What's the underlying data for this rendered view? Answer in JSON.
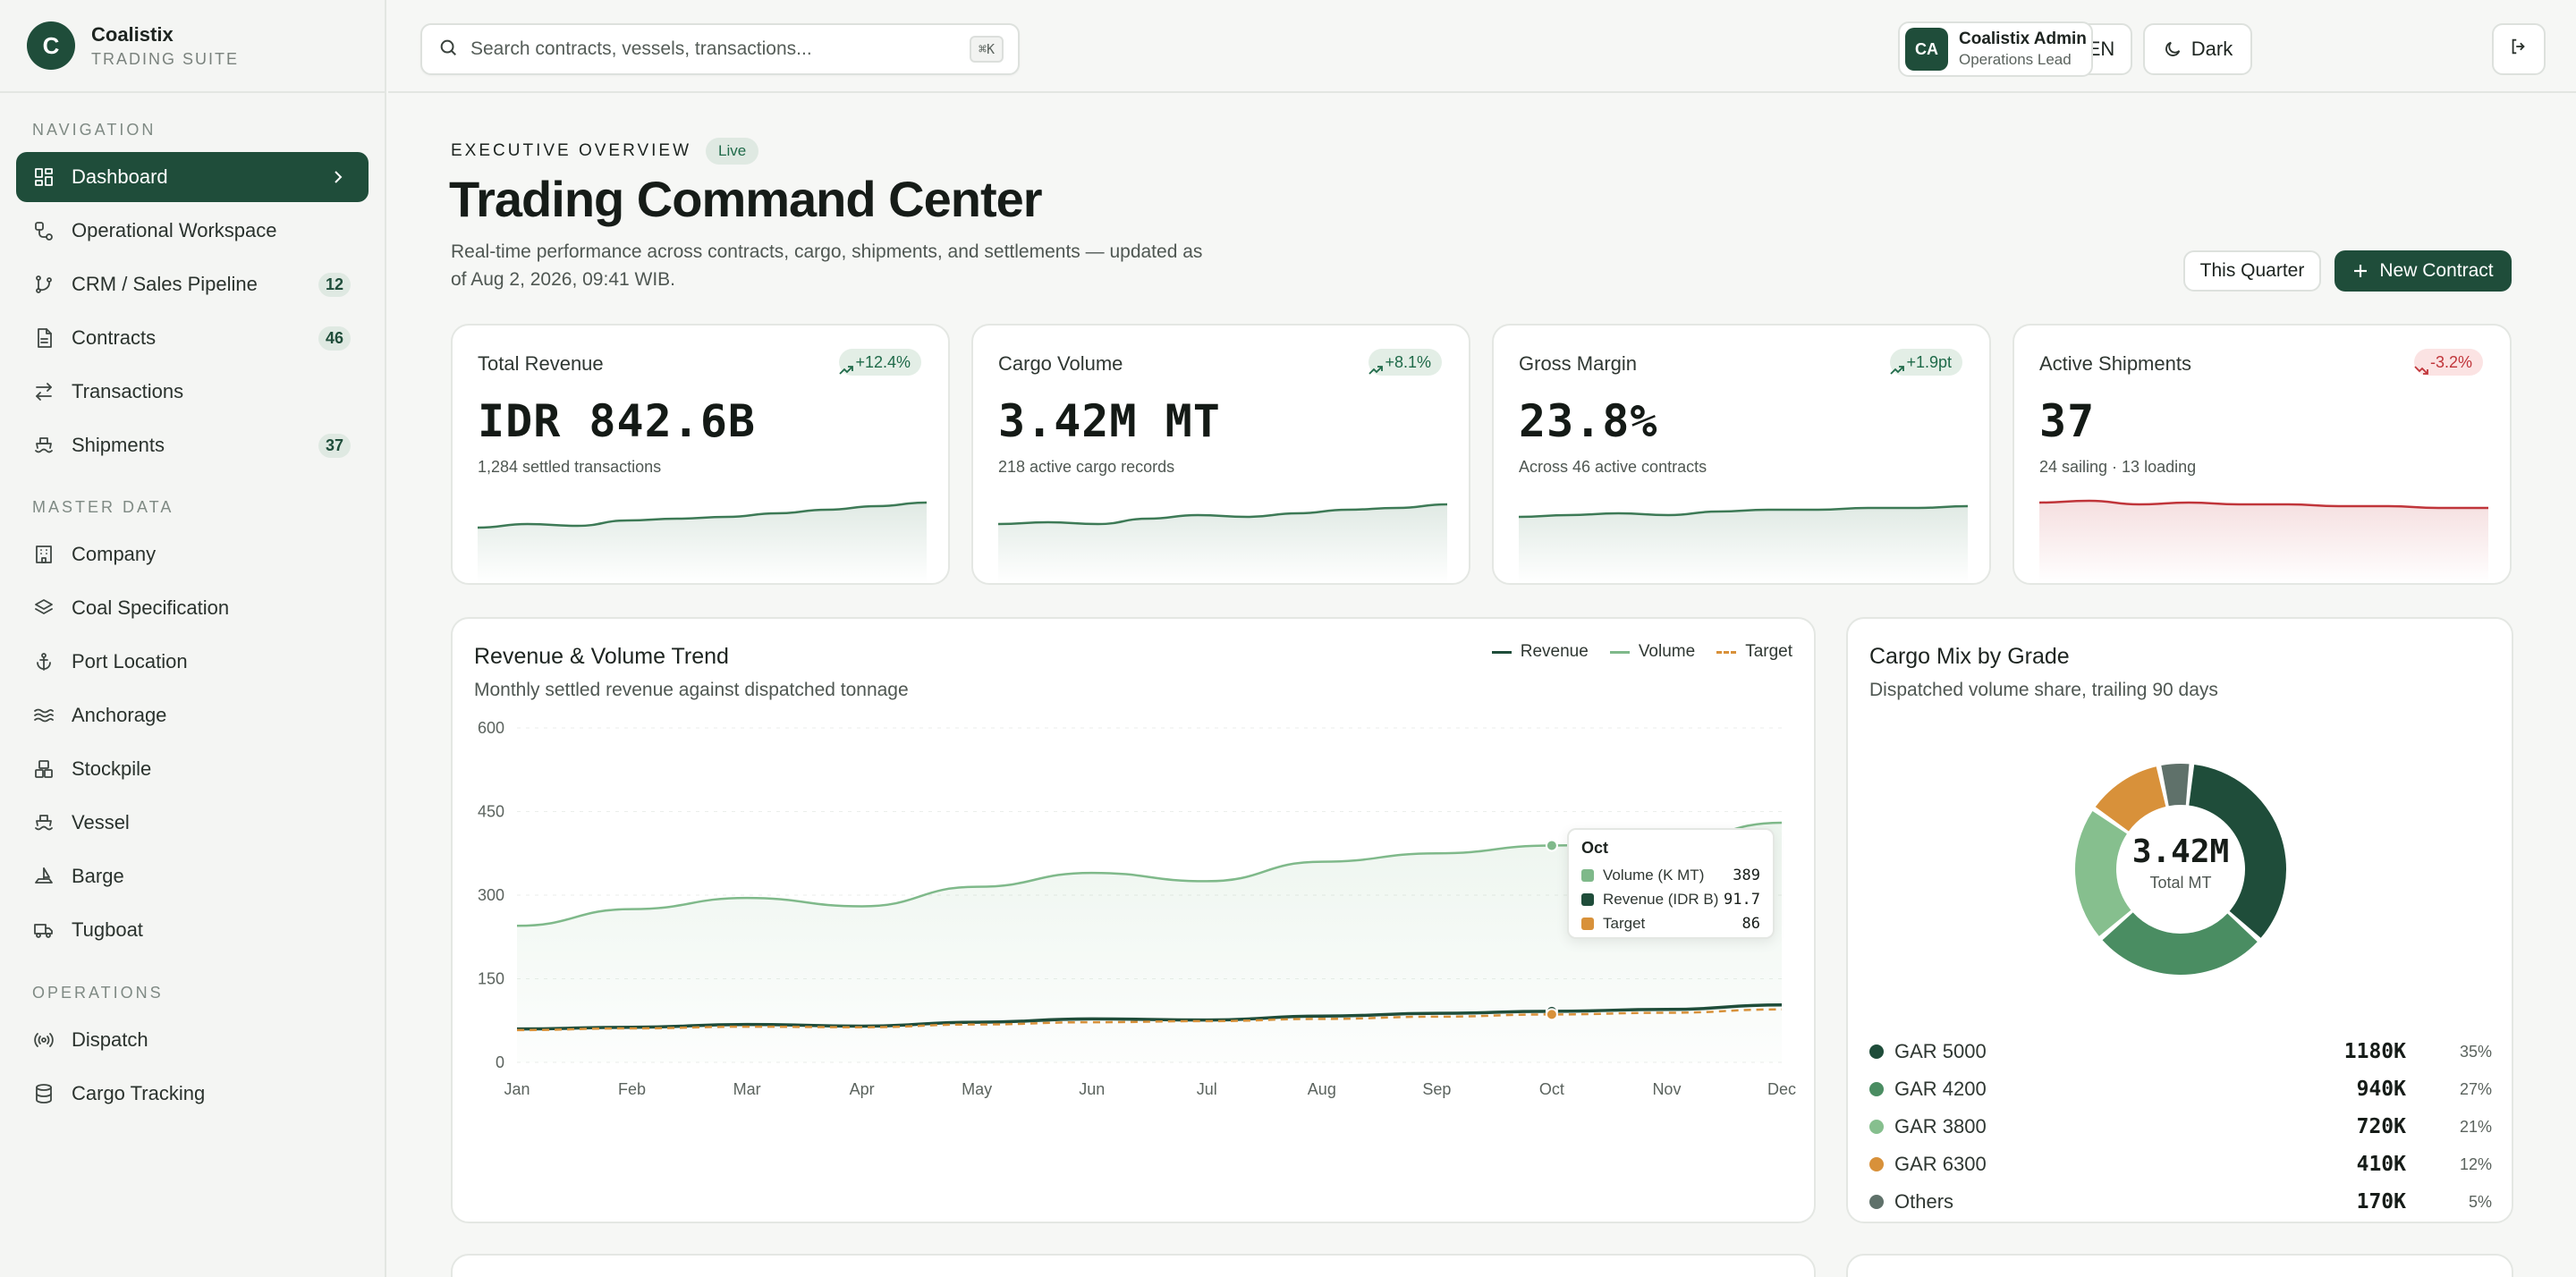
{
  "brand": {
    "name": "Coalistix",
    "subtitle": "TRADING SUITE",
    "logo_letter": "C"
  },
  "sidebar": {
    "sections": [
      {
        "heading": "NAVIGATION",
        "items": [
          {
            "label": "Dashboard",
            "icon": "dashboard-grid-icon",
            "active": true
          },
          {
            "label": "Operational Workspace",
            "icon": "workflow-icon"
          },
          {
            "label": "CRM / Sales Pipeline",
            "icon": "git-branch-icon",
            "badge": "12"
          },
          {
            "label": "Contracts",
            "icon": "document-icon",
            "badge": "46"
          },
          {
            "label": "Transactions",
            "icon": "swap-arrows-icon"
          },
          {
            "label": "Shipments",
            "icon": "ship-icon",
            "badge": "37"
          }
        ]
      },
      {
        "heading": "MASTER DATA",
        "items": [
          {
            "label": "Company",
            "icon": "building-icon"
          },
          {
            "label": "Coal Specification",
            "icon": "layers-icon"
          },
          {
            "label": "Port Location",
            "icon": "anchor-icon"
          },
          {
            "label": "Anchorage",
            "icon": "waves-icon"
          },
          {
            "label": "Stockpile",
            "icon": "boxes-icon"
          },
          {
            "label": "Vessel",
            "icon": "ship-icon"
          },
          {
            "label": "Barge",
            "icon": "sailboat-icon"
          },
          {
            "label": "Tugboat",
            "icon": "truck-icon"
          }
        ]
      },
      {
        "heading": "OPERATIONS",
        "items": [
          {
            "label": "Dispatch",
            "icon": "radio-icon"
          },
          {
            "label": "Cargo Tracking",
            "icon": "database-icon"
          }
        ]
      }
    ]
  },
  "topbar": {
    "search_placeholder": "Search contracts, vessels, transactions...",
    "search_shortcut": "⌘K",
    "language": "EN",
    "theme_label": "Dark",
    "user": {
      "initials": "CA",
      "name": "Coalistix Admin",
      "role": "Operations Lead"
    }
  },
  "header": {
    "eyebrow": "EXECUTIVE OVERVIEW",
    "live_badge": "Live",
    "title": "Trading Command Center",
    "description": "Real-time performance across contracts, cargo, shipments, and settlements — updated as of Aug 2, 2026, 09:41 WIB.",
    "period_button": "This Quarter",
    "new_contract_button": "New Contract"
  },
  "kpis": [
    {
      "label": "Total Revenue",
      "delta": "+12.4%",
      "trend": "up",
      "value": "IDR 842.6B",
      "sub": "1,284 settled transactions",
      "spark": [
        42,
        44,
        43,
        46,
        47,
        48,
        50,
        52,
        54,
        56
      ]
    },
    {
      "label": "Cargo Volume",
      "delta": "+8.1%",
      "trend": "up",
      "value": "3.42M MT",
      "sub": "218 active cargo records",
      "spark": [
        44,
        45,
        44,
        47,
        49,
        48,
        50,
        52,
        53,
        55
      ]
    },
    {
      "label": "Gross Margin",
      "delta": "+1.9pt",
      "trend": "up",
      "value": "23.8%",
      "sub": "Across 46 active contracts",
      "spark": [
        48,
        49,
        50,
        49,
        51,
        52,
        52,
        53,
        53,
        54
      ]
    },
    {
      "label": "Active Shipments",
      "delta": "-3.2%",
      "trend": "down",
      "value": "37",
      "sub": "24 sailing · 13 loading",
      "spark": [
        56,
        57,
        55,
        56,
        55,
        55,
        54,
        54,
        53,
        53
      ]
    }
  ],
  "trend_panel": {
    "title": "Revenue & Volume Trend",
    "subtitle": "Monthly settled revenue against dispatched tonnage",
    "legend": [
      {
        "name": "Revenue",
        "color": "#1f4d3a",
        "dashed": false
      },
      {
        "name": "Volume",
        "color": "#7fb98a",
        "dashed": false
      },
      {
        "name": "Target",
        "color": "#d8913a",
        "dashed": true
      }
    ],
    "tooltip": {
      "title": "Oct",
      "rows": [
        {
          "label": "Volume (K MT)",
          "value": "389",
          "color": "#7fb98a"
        },
        {
          "label": "Revenue (IDR B)",
          "value": "91.7",
          "color": "#1f4d3a"
        },
        {
          "label": "Target",
          "value": "86",
          "color": "#d8913a"
        }
      ]
    }
  },
  "chart_data": {
    "type": "line",
    "title": "Revenue & Volume Trend",
    "categories": [
      "Jan",
      "Feb",
      "Mar",
      "Apr",
      "May",
      "Jun",
      "Jul",
      "Aug",
      "Sep",
      "Oct",
      "Nov",
      "Dec"
    ],
    "ylim": [
      0,
      600
    ],
    "yticks": [
      "600",
      "450",
      "300",
      "150",
      "0"
    ],
    "grid": true,
    "legend_position": "top-right",
    "series": [
      {
        "name": "Volume",
        "values": [
          245,
          275,
          295,
          280,
          315,
          340,
          325,
          360,
          375,
          389,
          395,
          430
        ]
      },
      {
        "name": "Revenue",
        "values": [
          60,
          63,
          68,
          65,
          72,
          78,
          76,
          83,
          88,
          91.7,
          95,
          103
        ]
      },
      {
        "name": "Target",
        "values": [
          58,
          61,
          64,
          63,
          68,
          72,
          74,
          78,
          82,
          86,
          89,
          95
        ]
      }
    ]
  },
  "mix_panel": {
    "title": "Cargo Mix by Grade",
    "subtitle": "Dispatched volume share, trailing 90 days",
    "center_value": "3.42M",
    "center_label": "Total MT",
    "items": [
      {
        "label": "GAR 5000",
        "value": "1180K",
        "pct": "35%",
        "share": 35,
        "color": "#1f4d3a"
      },
      {
        "label": "GAR 4200",
        "value": "940K",
        "pct": "27%",
        "share": 27,
        "color": "#4a8d62"
      },
      {
        "label": "GAR 3800",
        "value": "720K",
        "pct": "21%",
        "share": 21,
        "color": "#86bf8e"
      },
      {
        "label": "GAR 6300",
        "value": "410K",
        "pct": "12%",
        "share": 12,
        "color": "#d8913a"
      },
      {
        "label": "Others",
        "value": "170K",
        "pct": "5%",
        "share": 5,
        "color": "#5f716a"
      }
    ]
  }
}
